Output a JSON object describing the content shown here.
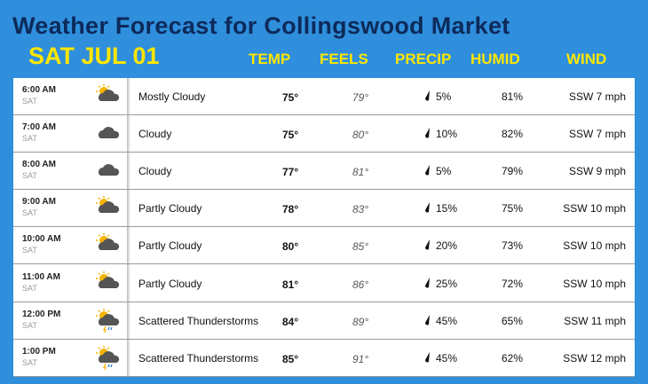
{
  "header": {
    "title": "Weather Forecast for Collingswood Market",
    "date": "SAT JUL 01",
    "columns": [
      "TEMP",
      "FEELS",
      "PRECIP",
      "HUMID",
      "WIND"
    ]
  },
  "table": {
    "rows": [
      {
        "time": "6:00 AM",
        "day": "SAT",
        "condition": "Mostly Cloudy",
        "temp": "75°",
        "feels": "79°",
        "precip": "5%",
        "humid": "81%",
        "wind": "SSW 7 mph"
      },
      {
        "time": "7:00 AM",
        "day": "SAT",
        "condition": "Cloudy",
        "temp": "75°",
        "feels": "80°",
        "precip": "10%",
        "humid": "82%",
        "wind": "SSW 7 mph"
      },
      {
        "time": "8:00 AM",
        "day": "SAT",
        "condition": "Cloudy",
        "temp": "77°",
        "feels": "81°",
        "precip": "5%",
        "humid": "79%",
        "wind": "SSW 9 mph"
      },
      {
        "time": "9:00 AM",
        "day": "SAT",
        "condition": "Partly Cloudy",
        "temp": "78°",
        "feels": "83°",
        "precip": "15%",
        "humid": "75%",
        "wind": "SSW 10 mph"
      },
      {
        "time": "10:00 AM",
        "day": "SAT",
        "condition": "Partly Cloudy",
        "temp": "80°",
        "feels": "85°",
        "precip": "20%",
        "humid": "73%",
        "wind": "SSW 10 mph"
      },
      {
        "time": "11:00 AM",
        "day": "SAT",
        "condition": "Partly Cloudy",
        "temp": "81°",
        "feels": "86°",
        "precip": "25%",
        "humid": "72%",
        "wind": "SSW 10 mph"
      },
      {
        "time": "12:00 PM",
        "day": "SAT",
        "condition": "Scattered Thunderstorms",
        "temp": "84°",
        "feels": "89°",
        "precip": "45%",
        "humid": "65%",
        "wind": "SSW 11 mph"
      },
      {
        "time": "1:00 PM",
        "day": "SAT",
        "condition": "Scattered Thunderstorms",
        "temp": "85°",
        "feels": "91°",
        "precip": "45%",
        "humid": "62%",
        "wind": "SSW 12 mph"
      }
    ]
  }
}
